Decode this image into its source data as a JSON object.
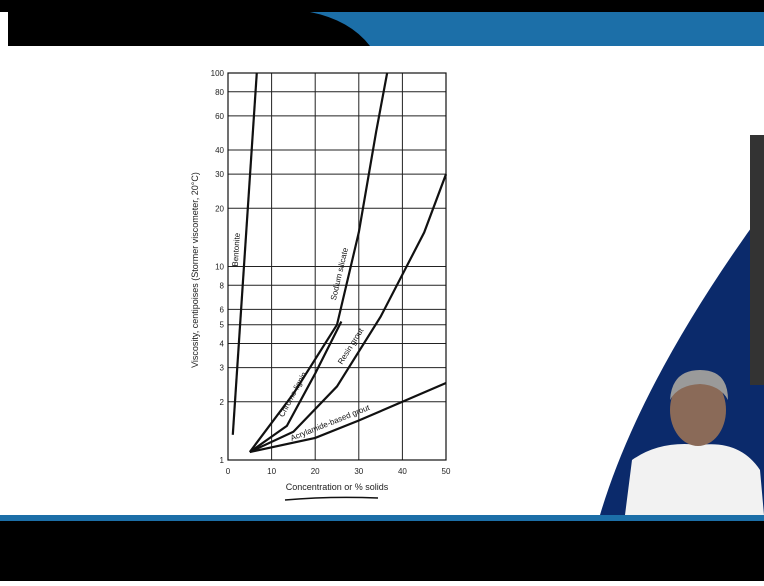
{
  "chart_data": {
    "type": "line",
    "x_label": "Concentration or % solids",
    "y_label": "Viscosity, centipoises (Stormer viscometer, 20°C)",
    "xlim": [
      0,
      50
    ],
    "xticks": [
      0,
      10,
      20,
      30,
      40,
      50
    ],
    "ylim": [
      1,
      100
    ],
    "yticks": [
      1,
      2,
      3,
      4,
      5,
      6,
      8,
      10,
      20,
      30,
      40,
      60,
      80,
      100
    ],
    "y_scale": "log",
    "grid": true,
    "series": [
      {
        "name": "Bentonite",
        "color": "#111111",
        "x": [
          1.1,
          6.6
        ],
        "values": [
          1.35,
          100
        ]
      },
      {
        "name": "Chrome-lignin",
        "color": "#111111",
        "x": [
          5,
          13.5,
          20,
          26
        ],
        "values": [
          1.1,
          1.5,
          2.8,
          5.2
        ]
      },
      {
        "name": "Sodium silicate",
        "color": "#111111",
        "x": [
          5,
          15,
          25,
          30,
          34,
          36.5
        ],
        "values": [
          1.1,
          2.2,
          5,
          15,
          50,
          100
        ]
      },
      {
        "name": "Resin grout",
        "color": "#111111",
        "x": [
          5,
          15,
          25,
          35,
          45,
          50
        ],
        "values": [
          1.1,
          1.4,
          2.4,
          5.5,
          15,
          30
        ]
      },
      {
        "name": "Acrylamide-based grout",
        "color": "#111111",
        "x": [
          5,
          20,
          30,
          40,
          50
        ],
        "values": [
          1.1,
          1.3,
          1.6,
          2,
          2.5
        ]
      }
    ]
  }
}
